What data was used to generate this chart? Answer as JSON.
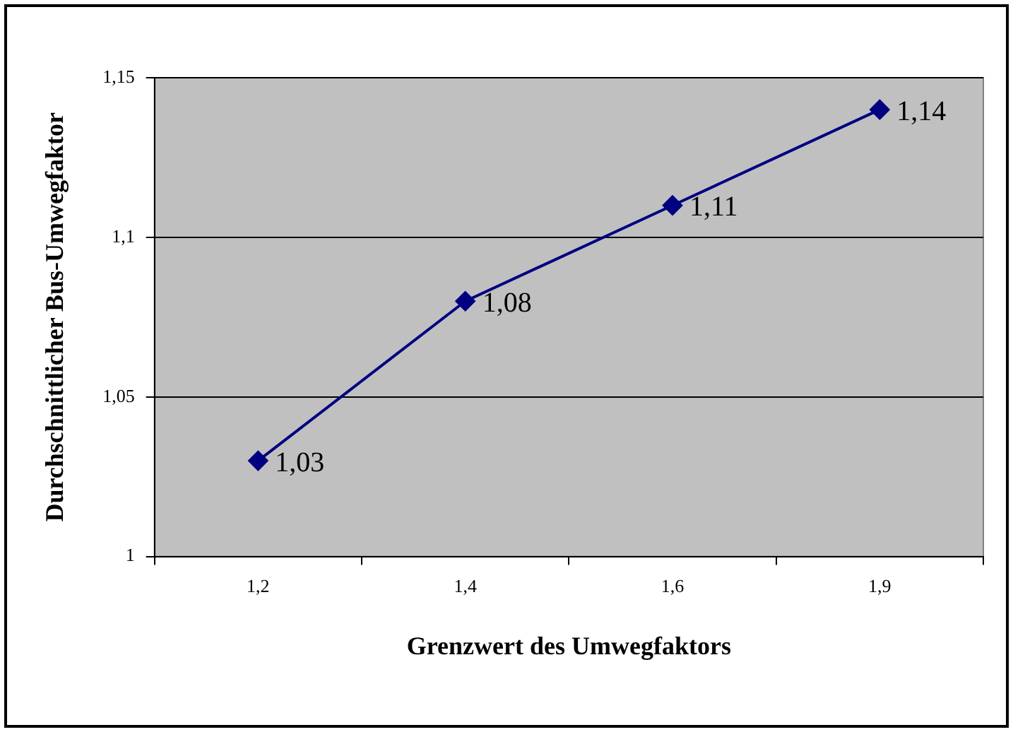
{
  "chart_data": {
    "type": "line",
    "xlabel": "Grenzwert des Umwegfaktors",
    "ylabel": "Durchschnittlicher Bus-Umwegfaktor",
    "categories": [
      "1,2",
      "1,4",
      "1,6",
      "1,9"
    ],
    "series": [
      {
        "color": "#000080",
        "values": [
          1.03,
          1.08,
          1.11,
          1.14
        ],
        "value_labels": [
          "1,03",
          "1,08",
          "1,11",
          "1,14"
        ]
      }
    ],
    "ylim": [
      1,
      1.15
    ],
    "yticks": [
      {
        "value": 1,
        "label": "1"
      },
      {
        "value": 1.05,
        "label": "1,05"
      },
      {
        "value": 1.1,
        "label": "1,1"
      },
      {
        "value": 1.15,
        "label": "1,15"
      }
    ],
    "grid": "y",
    "legend": false,
    "marker": "diamond",
    "line_style": "solid"
  }
}
